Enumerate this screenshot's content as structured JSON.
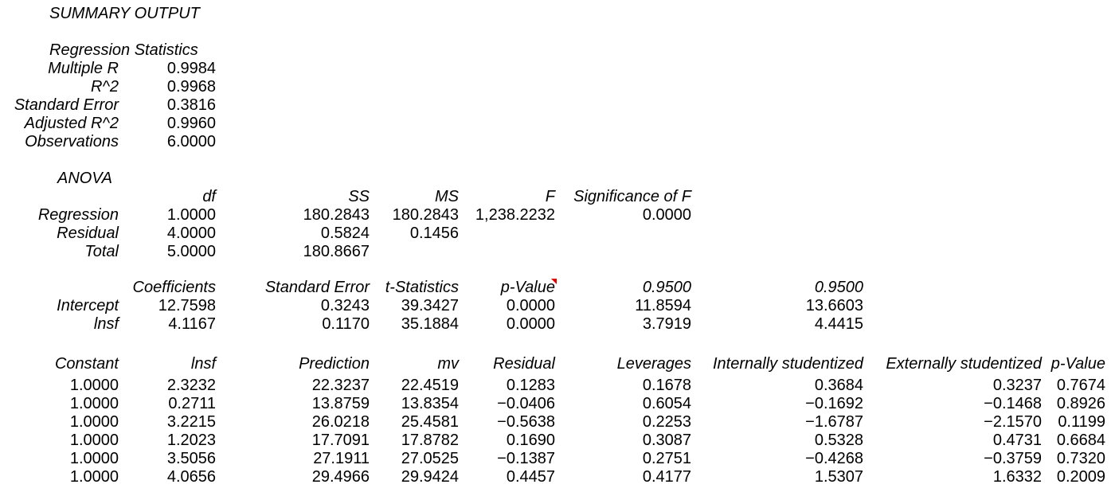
{
  "title": "SUMMARY OUTPUT",
  "regression_statistics": {
    "header": "Regression Statistics",
    "rows": [
      {
        "label": "Multiple R",
        "value": "0.9984"
      },
      {
        "label": "R^2",
        "value": "0.9968"
      },
      {
        "label": "Standard Error",
        "value": "0.3816"
      },
      {
        "label": "Adjusted R^2",
        "value": "0.9960"
      },
      {
        "label": "Observations",
        "value": "6.0000"
      }
    ]
  },
  "anova": {
    "header": "ANOVA",
    "columns": [
      "df",
      "SS",
      "MS",
      "F",
      "Significance of F"
    ],
    "rows": [
      {
        "label": "Regression",
        "df": "1.0000",
        "ss": "180.2843",
        "ms": "180.2843",
        "f": "1,238.2232",
        "sig": "0.0000"
      },
      {
        "label": "Residual",
        "df": "4.0000",
        "ss": "0.5824",
        "ms": "0.1456"
      },
      {
        "label": "Total",
        "df": "5.0000",
        "ss": "180.8667"
      }
    ]
  },
  "coefficients": {
    "columns": [
      "Coefficients",
      "Standard Error",
      "t-Statistics",
      "p-Value",
      "0.9500",
      "0.9500"
    ],
    "rows": [
      {
        "label": "Intercept",
        "coef": "12.7598",
        "se": "0.3243",
        "t": "39.3427",
        "p": "0.0000",
        "lower": "11.8594",
        "upper": "13.6603"
      },
      {
        "label": "lnsf",
        "coef": "4.1167",
        "se": "0.1170",
        "t": "35.1884",
        "p": "0.0000",
        "lower": "3.7919",
        "upper": "4.4415"
      }
    ]
  },
  "residuals": {
    "columns": [
      "Constant",
      "lnsf",
      "Prediction",
      "mv",
      "Residual",
      "Leverages",
      "Internally studentized",
      "Externally studentized",
      "p-Value"
    ],
    "rows": [
      [
        "1.0000",
        "2.3232",
        "22.3237",
        "22.4519",
        "0.1283",
        "0.1678",
        "0.3684",
        "0.3237",
        "0.7674"
      ],
      [
        "1.0000",
        "0.2711",
        "13.8759",
        "13.8354",
        "−0.0406",
        "0.6054",
        "−0.1692",
        "−0.1468",
        "0.8926"
      ],
      [
        "1.0000",
        "3.2215",
        "26.0218",
        "25.4581",
        "−0.5638",
        "0.2253",
        "−1.6787",
        "−2.1570",
        "0.1199"
      ],
      [
        "1.0000",
        "1.2023",
        "17.7091",
        "17.8782",
        "0.1690",
        "0.3087",
        "0.5328",
        "0.4731",
        "0.6684"
      ],
      [
        "1.0000",
        "3.5056",
        "27.1911",
        "27.0525",
        "−0.1387",
        "0.2751",
        "−0.4268",
        "−0.3759",
        "0.7320"
      ],
      [
        "1.0000",
        "4.0656",
        "29.4966",
        "29.9424",
        "0.4457",
        "0.4177",
        "1.5307",
        "1.6332",
        "0.2009"
      ]
    ]
  }
}
